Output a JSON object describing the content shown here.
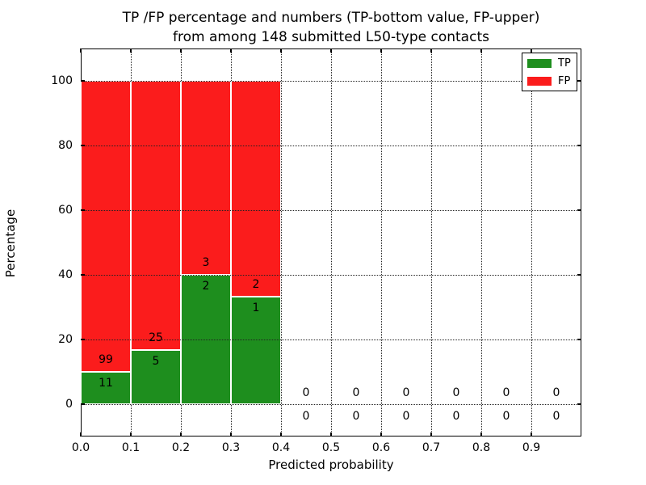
{
  "chart_data": {
    "type": "bar",
    "stacked": true,
    "title_lines": [
      "TP /FP percentage and numbers (TP-bottom value, FP-upper)",
      "from among 148 submitted L50-type contacts"
    ],
    "xlabel": "Predicted probability",
    "ylabel": "Percentage",
    "xlim": [
      0.0,
      1.0
    ],
    "ylim": [
      -10,
      110
    ],
    "xticks": [
      "0.0",
      "0.1",
      "0.2",
      "0.3",
      "0.4",
      "0.5",
      "0.6",
      "0.7",
      "0.8",
      "0.9"
    ],
    "yticks": [
      "0",
      "20",
      "40",
      "60",
      "80",
      "100"
    ],
    "bin_width": 0.1,
    "total_submitted": 148,
    "grid": "dotted",
    "legend_position": "upper-right",
    "colors": {
      "tp": "#1e8e1e",
      "fp": "#fb1c1c",
      "bar_edge": "#ffffff"
    },
    "legend": [
      {
        "label": "TP",
        "color_key": "tp"
      },
      {
        "label": "FP",
        "color_key": "fp"
      }
    ],
    "bins": [
      {
        "x0": 0.0,
        "x1": 0.1,
        "tp_count": 11,
        "fp_count": 99,
        "tp_pct": 10.0,
        "fp_pct": 90.0
      },
      {
        "x0": 0.1,
        "x1": 0.2,
        "tp_count": 5,
        "fp_count": 25,
        "tp_pct": 16.67,
        "fp_pct": 83.33
      },
      {
        "x0": 0.2,
        "x1": 0.3,
        "tp_count": 2,
        "fp_count": 3,
        "tp_pct": 40.0,
        "fp_pct": 60.0
      },
      {
        "x0": 0.3,
        "x1": 0.4,
        "tp_count": 1,
        "fp_count": 2,
        "tp_pct": 33.33,
        "fp_pct": 66.67
      },
      {
        "x0": 0.4,
        "x1": 0.5,
        "tp_count": 0,
        "fp_count": 0,
        "tp_pct": 0,
        "fp_pct": 0
      },
      {
        "x0": 0.5,
        "x1": 0.6,
        "tp_count": 0,
        "fp_count": 0,
        "tp_pct": 0,
        "fp_pct": 0
      },
      {
        "x0": 0.6,
        "x1": 0.7,
        "tp_count": 0,
        "fp_count": 0,
        "tp_pct": 0,
        "fp_pct": 0
      },
      {
        "x0": 0.7,
        "x1": 0.8,
        "tp_count": 0,
        "fp_count": 0,
        "tp_pct": 0,
        "fp_pct": 0
      },
      {
        "x0": 0.8,
        "x1": 0.9,
        "tp_count": 0,
        "fp_count": 0,
        "tp_pct": 0,
        "fp_pct": 0
      },
      {
        "x0": 0.9,
        "x1": 1.0,
        "tp_count": 0,
        "fp_count": 0,
        "tp_pct": 0,
        "fp_pct": 0
      }
    ]
  }
}
